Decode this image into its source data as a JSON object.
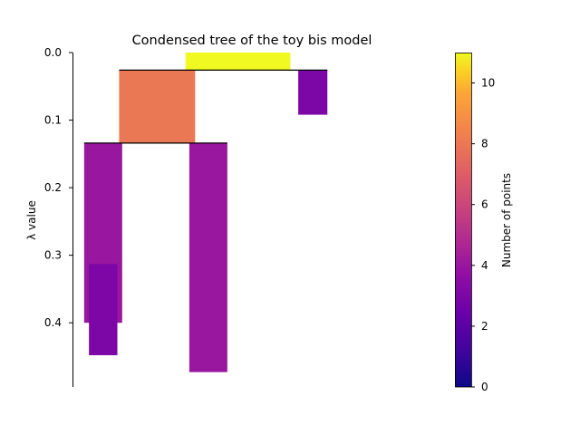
{
  "chart_data": {
    "type": "condensed-tree",
    "title": "Condensed tree of the toy bis model",
    "ylabel": "λ value",
    "y_ticks": [
      0.0,
      0.1,
      0.2,
      0.3,
      0.4
    ],
    "y_tick_labels": [
      "0.0",
      "0.1",
      "0.2",
      "0.3",
      "0.4"
    ],
    "ylim": [
      0.0,
      0.495
    ],
    "y_inverted": true,
    "clusters": [
      {
        "x0": 0.33,
        "x1": 0.636,
        "lambda_start": 0.0,
        "lambda_end": 0.026,
        "points": 11
      },
      {
        "x0": 0.136,
        "x1": 0.358,
        "lambda_start": 0.026,
        "lambda_end": 0.134,
        "points": 8
      },
      {
        "x0": 0.659,
        "x1": 0.744,
        "lambda_start": 0.026,
        "lambda_end": 0.092,
        "points": 3
      },
      {
        "x0": 0.034,
        "x1": 0.145,
        "lambda_start": 0.134,
        "lambda_end": 0.4,
        "points": 4
      },
      {
        "x0": 0.341,
        "x1": 0.452,
        "lambda_start": 0.134,
        "lambda_end": 0.473,
        "points": 4
      },
      {
        "x0": 0.048,
        "x1": 0.131,
        "lambda_start": 0.313,
        "lambda_end": 0.448,
        "points": 3
      }
    ],
    "split_lines": [
      {
        "x0": 0.136,
        "x1": 0.744,
        "lambda": 0.026
      },
      {
        "x0": 0.034,
        "x1": 0.452,
        "lambda": 0.134
      }
    ],
    "colorbar": {
      "label": "Number of points",
      "min": 0,
      "max": 11,
      "ticks": [
        0,
        2,
        4,
        6,
        8,
        10
      ],
      "tick_labels": [
        "0",
        "2",
        "4",
        "6",
        "8",
        "10"
      ],
      "colormap": "plasma"
    }
  }
}
